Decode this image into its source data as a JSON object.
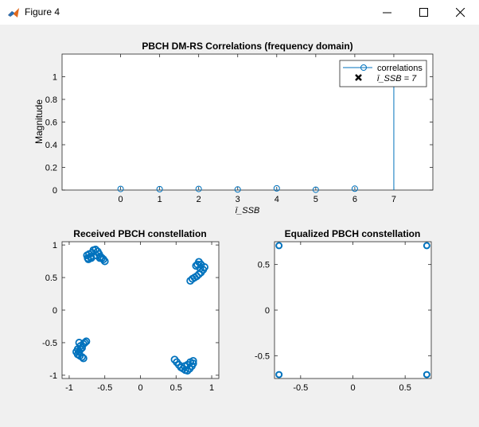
{
  "window": {
    "title": "Figure 4",
    "minimize_icon": "minimize-icon",
    "maximize_icon": "maximize-icon",
    "close_icon": "close-icon"
  },
  "colors": {
    "marker": "#0072bd",
    "background": "#f0f0f0",
    "axes": "#ffffff"
  },
  "chart_data": [
    {
      "type": "stem",
      "title": "PBCH DM-RS Correlations (frequency domain)",
      "ylabel": "Magnitude",
      "xlabel": "ī_SSB",
      "xlim": [
        -1.5,
        8
      ],
      "ylim": [
        0,
        1.2
      ],
      "xticks": [
        "0",
        "1",
        "2",
        "3",
        "4",
        "5",
        "6",
        "7"
      ],
      "yticks": [
        "0",
        "0.2",
        "0.4",
        "0.6",
        "0.8",
        "1"
      ],
      "x": [
        0,
        1,
        2,
        3,
        4,
        5,
        6,
        7
      ],
      "values": [
        0.01,
        0.008,
        0.01,
        0.005,
        0.015,
        0.003,
        0.012,
        1.0
      ],
      "legend": {
        "position": "top-right",
        "entries": [
          "correlations",
          "ī_SSB = 7"
        ]
      },
      "detected": {
        "x": 7,
        "y": 1.0
      }
    },
    {
      "type": "scatter",
      "title": "Received PBCH constellation",
      "xlim": [
        -1.1,
        1.1
      ],
      "ylim": [
        -1.05,
        1.05
      ],
      "xticks": [
        "-1",
        "-0.5",
        "0",
        "0.5",
        "1"
      ],
      "yticks": [
        "-1",
        "-0.5",
        "0",
        "0.5",
        "1"
      ],
      "points": [
        [
          -0.74,
          0.8
        ],
        [
          -0.72,
          0.86
        ],
        [
          -0.7,
          0.82
        ],
        [
          -0.68,
          0.88
        ],
        [
          -0.66,
          0.92
        ],
        [
          -0.63,
          0.93
        ],
        [
          -0.6,
          0.9
        ],
        [
          -0.58,
          0.86
        ],
        [
          -0.56,
          0.82
        ],
        [
          -0.54,
          0.8
        ],
        [
          -0.52,
          0.78
        ],
        [
          -0.5,
          0.75
        ],
        [
          -0.75,
          0.84
        ],
        [
          -0.73,
          0.78
        ],
        [
          -0.69,
          0.8
        ],
        [
          -0.62,
          0.84
        ],
        [
          -0.57,
          0.8
        ],
        [
          0.7,
          0.45
        ],
        [
          0.73,
          0.48
        ],
        [
          0.76,
          0.5
        ],
        [
          0.79,
          0.52
        ],
        [
          0.82,
          0.55
        ],
        [
          0.85,
          0.58
        ],
        [
          0.88,
          0.62
        ],
        [
          0.9,
          0.66
        ],
        [
          0.85,
          0.7
        ],
        [
          0.82,
          0.74
        ],
        [
          0.8,
          0.7
        ],
        [
          0.84,
          0.64
        ],
        [
          0.78,
          0.68
        ],
        [
          -0.86,
          -0.5
        ],
        [
          -0.84,
          -0.55
        ],
        [
          -0.82,
          -0.58
        ],
        [
          -0.8,
          -0.52
        ],
        [
          -0.78,
          -0.5
        ],
        [
          -0.76,
          -0.48
        ],
        [
          -0.88,
          -0.6
        ],
        [
          -0.9,
          -0.64
        ],
        [
          -0.88,
          -0.68
        ],
        [
          -0.85,
          -0.7
        ],
        [
          -0.82,
          -0.72
        ],
        [
          -0.8,
          -0.74
        ],
        [
          -0.86,
          -0.64
        ],
        [
          -0.84,
          -0.6
        ],
        [
          0.48,
          -0.76
        ],
        [
          0.51,
          -0.8
        ],
        [
          0.54,
          -0.84
        ],
        [
          0.57,
          -0.88
        ],
        [
          0.6,
          -0.9
        ],
        [
          0.63,
          -0.92
        ],
        [
          0.66,
          -0.93
        ],
        [
          0.69,
          -0.9
        ],
        [
          0.72,
          -0.86
        ],
        [
          0.74,
          -0.82
        ],
        [
          0.74,
          -0.78
        ],
        [
          0.7,
          -0.8
        ],
        [
          0.66,
          -0.84
        ],
        [
          0.62,
          -0.86
        ]
      ]
    },
    {
      "type": "scatter",
      "title": "Equalized PBCH constellation",
      "xlim": [
        -0.75,
        0.75
      ],
      "ylim": [
        -0.75,
        0.75
      ],
      "xticks": [
        "-0.5",
        "0",
        "0.5"
      ],
      "yticks": [
        "-0.5",
        "0",
        "0.5"
      ],
      "points": [
        [
          -0.707,
          0.707
        ],
        [
          0.707,
          0.707
        ],
        [
          -0.707,
          -0.707
        ],
        [
          0.707,
          -0.707
        ]
      ]
    }
  ]
}
